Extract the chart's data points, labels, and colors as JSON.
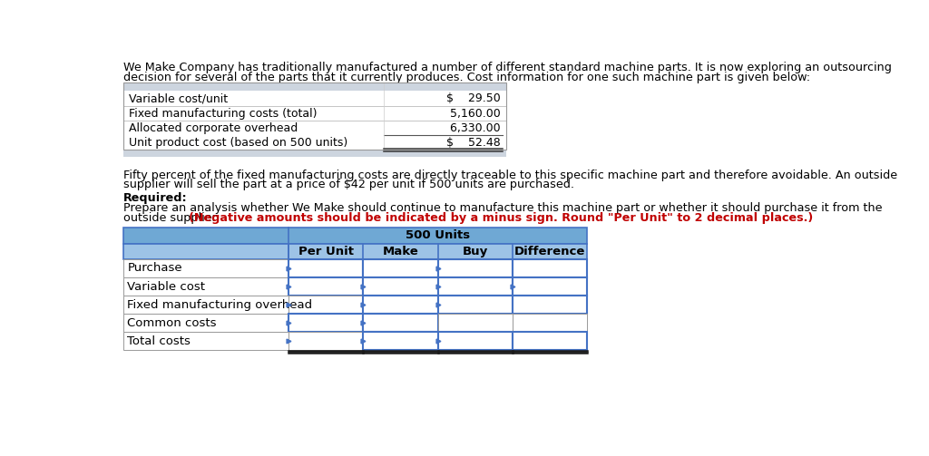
{
  "intro_line1": "We Make Company has traditionally manufactured a number of different standard machine parts. It is now exploring an outsourcing",
  "intro_line2": "decision for several of the parts that it currently produces. Cost information for one such machine part is given below:",
  "cost_rows": [
    {
      "label": "Variable cost/unit",
      "value": "$    29.50",
      "underline": false,
      "dollar": true
    },
    {
      "label": "Fixed manufacturing costs (total)",
      "value": "  5,160.00",
      "underline": false,
      "dollar": false
    },
    {
      "label": "Allocated corporate overhead",
      "value": "  6,330.00",
      "underline": true,
      "dollar": false
    },
    {
      "label": "Unit product cost (based on 500 units)",
      "value": "$    52.48",
      "underline": true,
      "dollar": true
    }
  ],
  "cost_table_header_bg": "#cdd5df",
  "cost_table_footer_bg": "#cdd5df",
  "middle_line1": "Fifty percent of the fixed manufacturing costs are directly traceable to this specific machine part and therefore avoidable. An outside",
  "middle_line2": "supplier will sell the part at a price of $42 per unit if 500 units are purchased.",
  "required_bold": "Required:",
  "req_line1": "Prepare an analysis whether We Make should continue to manufacture this machine part or whether it should purchase it from the",
  "req_line2_black": "outside supplier ",
  "req_line2_red": "(Negative amounts should be indicated by a minus sign. Round \"Per Unit\" to 2 decimal places.)",
  "analysis_rows": [
    "Purchase",
    "Variable cost",
    "Fixed manufacturing overhead",
    "Common costs",
    "Total costs"
  ],
  "col_headers": [
    "Per Unit",
    "Make",
    "Buy",
    "Difference"
  ],
  "span_header": "500 Units",
  "hdr1_bg": "#6fa8d4",
  "hdr2_bg": "#9dc3e6",
  "cell_bg": "#ffffff",
  "border_blue": "#4472c4",
  "border_gray": "#999999",
  "border_dark": "#1a1a1a",
  "text_black": "#000000",
  "text_red": "#c00000",
  "bg": "#ffffff"
}
